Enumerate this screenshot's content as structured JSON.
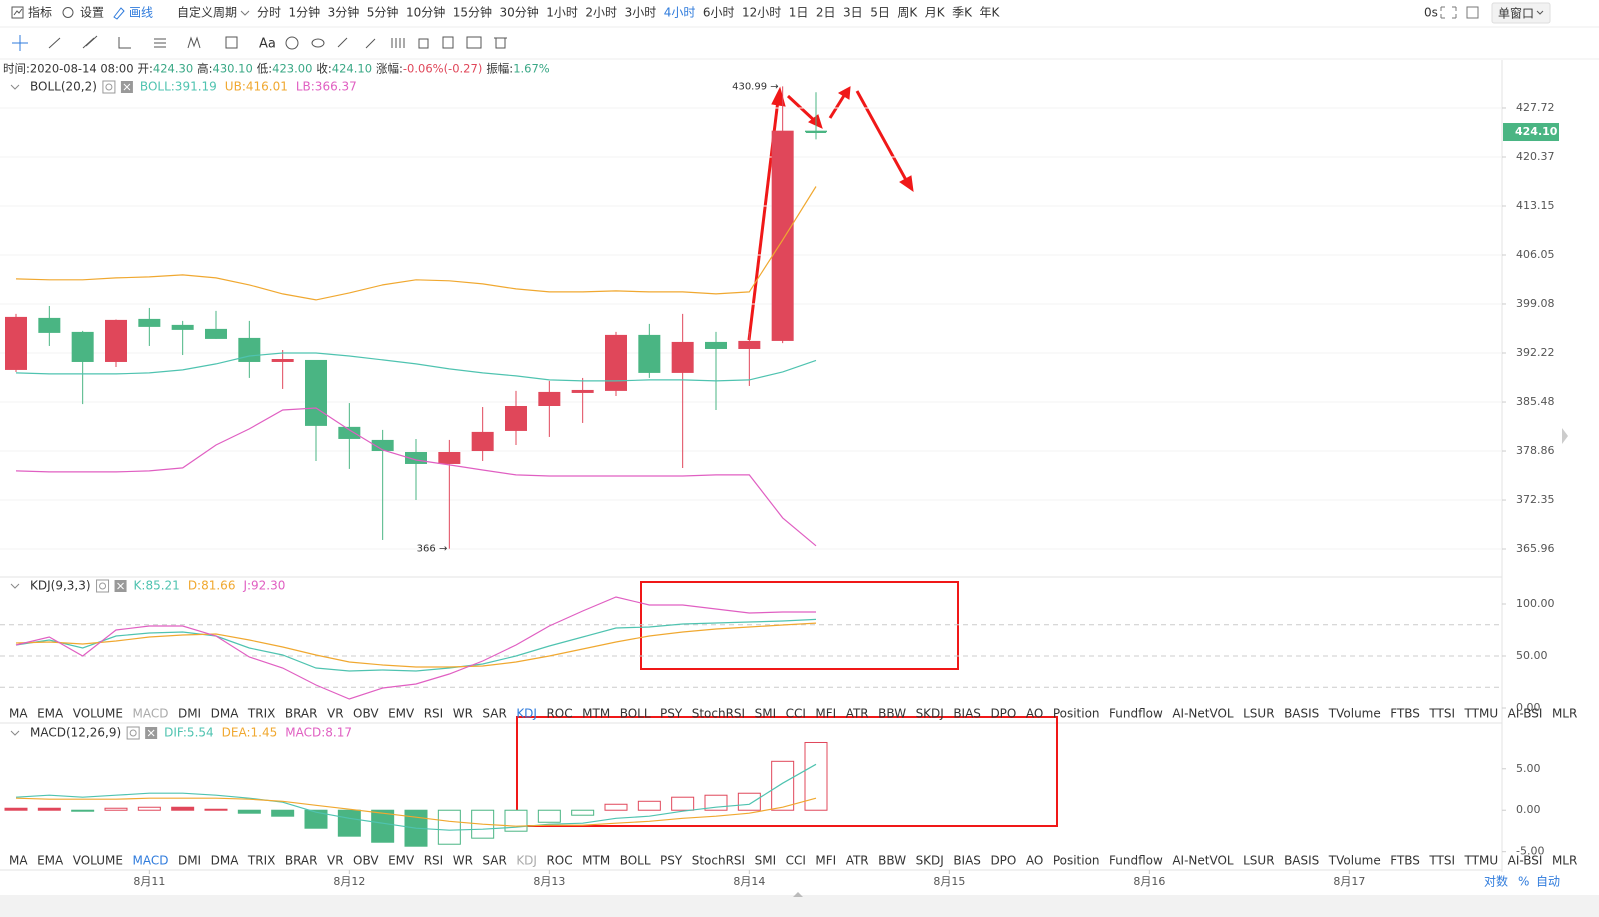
{
  "toolbar": {
    "indicators": "指标",
    "settings": "设置",
    "drawing": "画线",
    "custom_period": "自定义周期",
    "periods": [
      {
        "label": "分时"
      },
      {
        "label": "1分钟"
      },
      {
        "label": "3分钟"
      },
      {
        "label": "5分钟"
      },
      {
        "label": "10分钟"
      },
      {
        "label": "15分钟"
      },
      {
        "label": "30分钟"
      },
      {
        "label": "1小时"
      },
      {
        "label": "2小时"
      },
      {
        "label": "3小时"
      },
      {
        "label": "4小时",
        "active": true
      },
      {
        "label": "6小时"
      },
      {
        "label": "12小时"
      },
      {
        "label": "1日"
      },
      {
        "label": "2日"
      },
      {
        "label": "3日"
      },
      {
        "label": "5日"
      },
      {
        "label": "周K"
      },
      {
        "label": "月K"
      },
      {
        "label": "季K"
      },
      {
        "label": "年K"
      }
    ],
    "timer": "0s",
    "window": "单窗口",
    "font_tool": "Aa"
  },
  "info": [
    {
      "label": "时间:",
      "value": "2020-08-14 08:00",
      "color": "#333333"
    },
    {
      "label": "开:",
      "value": "424.30",
      "color": "#3aa886"
    },
    {
      "label": "高:",
      "value": "430.10",
      "color": "#3aa886"
    },
    {
      "label": "低:",
      "value": "423.00",
      "color": "#3aa886"
    },
    {
      "label": "收:",
      "value": "424.10",
      "color": "#3aa886"
    },
    {
      "label": "涨幅:",
      "value": "-0.06%(-0.27)",
      "color": "#e0475a"
    },
    {
      "label": "振幅:",
      "value": "1.67%",
      "color": "#3aa886"
    }
  ],
  "chart_data": [
    {
      "type": "candlestick",
      "title": "BOLL(20,2)",
      "log": true,
      "grid": true,
      "categories": [
        null,
        null,
        null,
        null,
        null,
        null,
        null,
        null,
        null,
        null,
        null,
        null,
        null,
        null,
        null,
        null,
        null,
        null,
        null,
        null,
        null,
        null,
        null,
        null,
        null
      ],
      "ylim": [
        362.61,
        434.73
      ],
      "yticks": [
        427.72,
        420.37,
        413.15,
        406.05,
        399.08,
        392.22,
        385.48,
        378.86,
        372.35,
        365.96
      ],
      "up_color": "#e0475a",
      "down_color": "#4ab583",
      "ohlc": [
        [
          389.88,
          397.68,
          389.6,
          397.26
        ],
        [
          397.12,
          398.8,
          393.2,
          395.02
        ],
        [
          395.16,
          395.3,
          385.2,
          390.98
        ],
        [
          390.98,
          396.9,
          390.29,
          396.84
        ],
        [
          396.98,
          398.52,
          393.2,
          395.86
        ],
        [
          396.14,
          396.7,
          391.94,
          395.44
        ],
        [
          395.58,
          398.1,
          394.18,
          394.18
        ],
        [
          394.32,
          396.7,
          388.78,
          390.98
        ],
        [
          390.98,
          392.64,
          387.27,
          391.39
        ],
        [
          391.26,
          391.26,
          377.53,
          382.24
        ],
        [
          382.11,
          385.34,
          376.47,
          380.48
        ],
        [
          380.35,
          381.7,
          367.13,
          378.86
        ],
        [
          378.73,
          380.48,
          372.35,
          377.13
        ],
        [
          377.13,
          380.35,
          366.0,
          378.73
        ],
        [
          378.86,
          384.8,
          377.53,
          381.43
        ],
        [
          381.56,
          387.0,
          379.67,
          384.94
        ],
        [
          384.94,
          388.37,
          380.75,
          386.86
        ],
        [
          386.72,
          388.78,
          382.64,
          387.13
        ],
        [
          387.0,
          395.16,
          386.31,
          394.74
        ],
        [
          394.74,
          396.28,
          388.78,
          389.47
        ],
        [
          389.47,
          397.68,
          376.6,
          393.76
        ],
        [
          393.76,
          395.16,
          384.4,
          392.78
        ],
        [
          392.78,
          395.16,
          387.68,
          393.9
        ],
        [
          393.9,
          430.99,
          393.6,
          424.3
        ],
        [
          424.3,
          430.1,
          423.0,
          424.1
        ]
      ],
      "lines": [
        {
          "legend": "BOLL:391.19",
          "color": "#4fc3b0",
          "values": [
            389.47,
            389.33,
            389.33,
            389.33,
            389.47,
            389.88,
            390.71,
            391.81,
            392.22,
            392.22,
            391.81,
            391.26,
            390.71,
            390.02,
            389.47,
            389.06,
            388.51,
            388.37,
            388.37,
            388.51,
            388.51,
            388.37,
            388.51,
            389.61,
            391.19
          ]
        },
        {
          "legend": "UB:416.01",
          "color": "#f0a830",
          "values": [
            402.64,
            402.5,
            402.5,
            402.78,
            402.92,
            403.21,
            402.78,
            401.78,
            400.5,
            399.65,
            400.64,
            401.78,
            402.5,
            402.36,
            401.93,
            401.22,
            400.79,
            400.79,
            400.93,
            400.79,
            400.79,
            400.5,
            400.79,
            408.22,
            416.01
          ]
        },
        {
          "legend": "LB:366.37",
          "color": "#e05fc2",
          "values": [
            376.2,
            376.07,
            376.07,
            376.07,
            376.2,
            376.6,
            379.67,
            381.83,
            384.4,
            384.67,
            381.7,
            379.0,
            377.66,
            377.0,
            376.33,
            375.67,
            375.53,
            375.53,
            375.53,
            375.53,
            375.53,
            375.67,
            375.67,
            370.0,
            366.37
          ]
        }
      ],
      "max_label": "430.99 →",
      "min_label": "366 →",
      "price_tag": {
        "value": 424.1,
        "label": "424.10",
        "color": "#4ab583"
      }
    },
    {
      "type": "line",
      "title": "KDJ(9,3,3)",
      "ylim": [
        0,
        125
      ],
      "yticks": [
        {
          "value": 100,
          "label": "100.00"
        },
        {
          "value": 50,
          "label": "50.00"
        },
        {
          "value": 0,
          "label": "0.00"
        }
      ],
      "dashed_lines": [
        80,
        50,
        20
      ],
      "series": [
        {
          "legend": "K:85.21",
          "color": "#4fc3b0",
          "values": [
            60.6,
            65.4,
            57.7,
            69.2,
            72.1,
            73.1,
            69.2,
            57.7,
            51.0,
            38.5,
            35.6,
            36.5,
            35.6,
            38.5,
            42.3,
            50.0,
            59.6,
            68.3,
            76.9,
            77.9,
            80.8,
            81.7,
            82.7,
            83.7,
            85.21
          ]
        },
        {
          "legend": "D:81.66",
          "color": "#f0a830",
          "values": [
            62.5,
            63.5,
            61.5,
            64.4,
            68.3,
            70.2,
            71.2,
            65.4,
            58.7,
            51.0,
            44.2,
            41.3,
            39.4,
            39.4,
            40.4,
            44.2,
            50.0,
            56.7,
            63.5,
            69.2,
            73.1,
            76.0,
            77.9,
            79.8,
            81.66
          ]
        },
        {
          "legend": "J:92.30",
          "color": "#e05fc2",
          "values": [
            60.6,
            68.3,
            50.0,
            75.0,
            78.8,
            78.8,
            69.2,
            49.0,
            38.5,
            22.1,
            8.7,
            19.2,
            23.1,
            32.7,
            45.2,
            60.6,
            78.8,
            93.3,
            106.7,
            99.0,
            99.0,
            95.2,
            91.3,
            92.3,
            92.3
          ]
        }
      ],
      "tabs": [
        "MA",
        "EMA",
        "VOLUME",
        {
          "label": "MACD",
          "state": "disabled"
        },
        "DMI",
        "DMA",
        "TRIX",
        "BRAR",
        "VR",
        "OBV",
        "EMV",
        "RSI",
        "WR",
        "SAR",
        {
          "label": "KDJ",
          "state": "active"
        },
        "ROC",
        "MTM",
        "BOLL",
        "PSY",
        "StochRSI",
        "SMI",
        "CCI",
        "MFI",
        "ATR",
        "BBW",
        "SKDJ",
        "BIAS",
        "DPO",
        "AO",
        "Position",
        "Fundflow",
        "AI-NetVOL",
        "LSUR",
        "BASIS",
        "TVolume",
        "FTBS",
        "TTSI",
        "TTMU",
        "AI-BSI",
        "MLR"
      ]
    },
    {
      "type": "macd",
      "title": "MACD(12,26,9)",
      "ylim": [
        -5.4,
        10.4
      ],
      "yticks": [
        {
          "value": 5,
          "label": "5.00"
        },
        {
          "value": 0,
          "label": "0.00"
        },
        {
          "value": -5,
          "label": "-5.00"
        }
      ],
      "series": [
        {
          "legend": "DIF:5.54",
          "color": "#4fc3b0",
          "values": [
            1.57,
            1.81,
            1.57,
            1.81,
            2.05,
            2.05,
            1.81,
            1.45,
            0.97,
            -0.24,
            -0.97,
            -1.57,
            -2.17,
            -2.41,
            -2.29,
            -2.05,
            -1.69,
            -1.57,
            -0.97,
            -0.72,
            -0.12,
            0.36,
            0.72,
            3.26,
            5.54
          ]
        },
        {
          "legend": "DEA:1.45",
          "color": "#f0a830",
          "values": [
            1.45,
            1.33,
            1.33,
            1.33,
            1.45,
            1.45,
            1.45,
            1.33,
            1.08,
            0.6,
            0.12,
            -0.36,
            -0.84,
            -1.33,
            -1.69,
            -1.93,
            -1.81,
            -1.81,
            -1.57,
            -1.33,
            -0.97,
            -0.72,
            -0.36,
            0.36,
            1.45
          ]
        }
      ],
      "bars": {
        "legend": "MACD:8.17",
        "color": "#e05fc2",
        "up_color": "#e0475a",
        "down_color": "#4ab583",
        "values": [
          0.24,
          0.24,
          -0.12,
          0.24,
          0.36,
          0.36,
          0.12,
          -0.36,
          -0.72,
          -2.17,
          -3.13,
          -3.86,
          -4.34,
          -4.1,
          -3.37,
          -2.53,
          -1.45,
          -0.6,
          0.72,
          1.08,
          1.57,
          1.81,
          2.05,
          5.9,
          8.17
        ]
      },
      "xticks": [
        {
          "value": 4,
          "label": "8月11"
        },
        {
          "value": 10,
          "label": "8月12"
        },
        {
          "value": 16,
          "label": "8月13"
        },
        {
          "value": 22,
          "label": "8月14"
        },
        {
          "value": 28,
          "label": "8月15"
        },
        {
          "value": 34,
          "label": "8月16"
        },
        {
          "value": 40,
          "label": "8月17"
        }
      ],
      "tabs": [
        "MA",
        "EMA",
        "VOLUME",
        {
          "label": "MACD",
          "state": "active"
        },
        "DMI",
        "DMA",
        "TRIX",
        "BRAR",
        "VR",
        "OBV",
        "EMV",
        "RSI",
        "WR",
        "SAR",
        {
          "label": "KDJ",
          "state": "disabled"
        },
        "ROC",
        "MTM",
        "BOLL",
        "PSY",
        "StochRSI",
        "SMI",
        "CCI",
        "MFI",
        "ATR",
        "BBW",
        "SKDJ",
        "BIAS",
        "DPO",
        "AO",
        "Position",
        "Fundflow",
        "AI-NetVOL",
        "LSUR",
        "BASIS",
        "TVolume",
        "FTBS",
        "TTSI",
        "TTMU",
        "AI-BSI",
        "MLR"
      ]
    }
  ],
  "footer": {
    "log": "对数",
    "percent": "%",
    "auto": "自动"
  }
}
